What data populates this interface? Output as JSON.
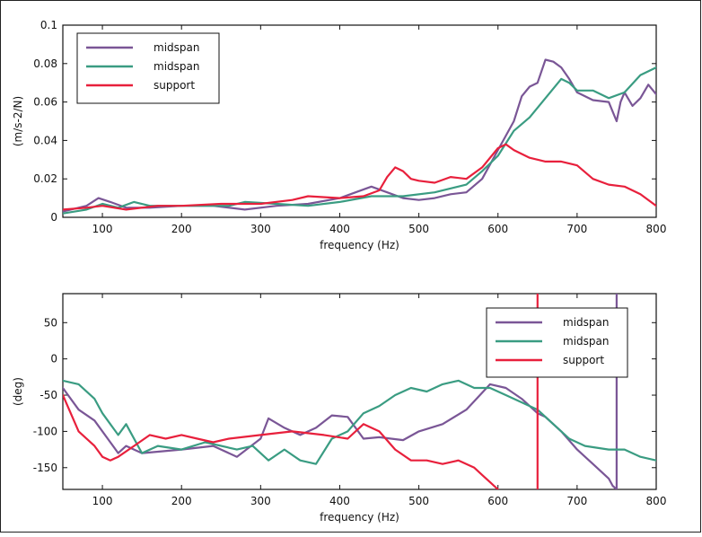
{
  "chart_data": [
    {
      "type": "line",
      "xlabel": "frequency (Hz)",
      "ylabel": "(m/s-2/N)",
      "xlim": [
        50,
        800
      ],
      "ylim": [
        0,
        0.1
      ],
      "xticks": [
        100,
        200,
        300,
        400,
        500,
        600,
        700,
        800
      ],
      "xtick_labels": [
        "100",
        "200",
        "300",
        "400",
        "500",
        "600",
        "700",
        "800"
      ],
      "yticks": [
        0,
        0.02,
        0.04,
        0.06,
        0.08,
        0.1
      ],
      "ytick_labels": [
        "0",
        "0.02",
        "0.04",
        "0.06",
        "0.08",
        "0.1"
      ],
      "legend_position": "top-left",
      "series": [
        {
          "name": "midspan",
          "color": "#7a5696",
          "points": [
            [
              50,
              0.003
            ],
            [
              80,
              0.006
            ],
            [
              95,
              0.01
            ],
            [
              110,
              0.008
            ],
            [
              130,
              0.005
            ],
            [
              160,
              0.005
            ],
            [
              200,
              0.006
            ],
            [
              240,
              0.006
            ],
            [
              280,
              0.004
            ],
            [
              320,
              0.006
            ],
            [
              360,
              0.007
            ],
            [
              400,
              0.01
            ],
            [
              420,
              0.013
            ],
            [
              440,
              0.016
            ],
            [
              460,
              0.013
            ],
            [
              480,
              0.01
            ],
            [
              500,
              0.009
            ],
            [
              520,
              0.01
            ],
            [
              540,
              0.012
            ],
            [
              560,
              0.013
            ],
            [
              580,
              0.02
            ],
            [
              600,
              0.035
            ],
            [
              620,
              0.05
            ],
            [
              630,
              0.063
            ],
            [
              640,
              0.068
            ],
            [
              650,
              0.07
            ],
            [
              660,
              0.082
            ],
            [
              670,
              0.081
            ],
            [
              680,
              0.078
            ],
            [
              690,
              0.072
            ],
            [
              700,
              0.065
            ],
            [
              720,
              0.061
            ],
            [
              740,
              0.06
            ],
            [
              750,
              0.05
            ],
            [
              755,
              0.06
            ],
            [
              760,
              0.065
            ],
            [
              770,
              0.058
            ],
            [
              780,
              0.062
            ],
            [
              790,
              0.069
            ],
            [
              800,
              0.064
            ]
          ]
        },
        {
          "name": "midspan",
          "color": "#3a9c82",
          "points": [
            [
              50,
              0.002
            ],
            [
              80,
              0.004
            ],
            [
              100,
              0.007
            ],
            [
              120,
              0.005
            ],
            [
              140,
              0.008
            ],
            [
              160,
              0.006
            ],
            [
              200,
              0.006
            ],
            [
              260,
              0.006
            ],
            [
              280,
              0.008
            ],
            [
              320,
              0.007
            ],
            [
              360,
              0.006
            ],
            [
              400,
              0.008
            ],
            [
              440,
              0.011
            ],
            [
              480,
              0.011
            ],
            [
              520,
              0.013
            ],
            [
              560,
              0.017
            ],
            [
              580,
              0.024
            ],
            [
              600,
              0.032
            ],
            [
              620,
              0.045
            ],
            [
              640,
              0.052
            ],
            [
              660,
              0.062
            ],
            [
              680,
              0.072
            ],
            [
              690,
              0.07
            ],
            [
              700,
              0.066
            ],
            [
              720,
              0.066
            ],
            [
              740,
              0.062
            ],
            [
              760,
              0.065
            ],
            [
              780,
              0.074
            ],
            [
              800,
              0.078
            ]
          ]
        },
        {
          "name": "support",
          "color": "#e8203c",
          "points": [
            [
              50,
              0.004
            ],
            [
              80,
              0.005
            ],
            [
              100,
              0.006
            ],
            [
              130,
              0.004
            ],
            [
              170,
              0.006
            ],
            [
              200,
              0.006
            ],
            [
              250,
              0.007
            ],
            [
              300,
              0.007
            ],
            [
              340,
              0.009
            ],
            [
              360,
              0.011
            ],
            [
              400,
              0.01
            ],
            [
              430,
              0.011
            ],
            [
              450,
              0.014
            ],
            [
              460,
              0.021
            ],
            [
              470,
              0.026
            ],
            [
              480,
              0.024
            ],
            [
              490,
              0.02
            ],
            [
              500,
              0.019
            ],
            [
              520,
              0.018
            ],
            [
              540,
              0.021
            ],
            [
              560,
              0.02
            ],
            [
              580,
              0.026
            ],
            [
              600,
              0.036
            ],
            [
              610,
              0.038
            ],
            [
              620,
              0.035
            ],
            [
              640,
              0.031
            ],
            [
              660,
              0.029
            ],
            [
              680,
              0.029
            ],
            [
              700,
              0.027
            ],
            [
              720,
              0.02
            ],
            [
              740,
              0.017
            ],
            [
              760,
              0.016
            ],
            [
              780,
              0.012
            ],
            [
              800,
              0.006
            ]
          ]
        }
      ]
    },
    {
      "type": "line",
      "xlabel": "frequency (Hz)",
      "ylabel": "(deg)",
      "xlim": [
        50,
        800
      ],
      "ylim": [
        -180,
        90
      ],
      "xticks": [
        100,
        200,
        300,
        400,
        500,
        600,
        700,
        800
      ],
      "xtick_labels": [
        "100",
        "200",
        "300",
        "400",
        "500",
        "600",
        "700",
        "800"
      ],
      "yticks": [
        -150,
        -100,
        -50,
        0,
        50
      ],
      "ytick_labels": [
        "-150",
        "-100",
        "-50",
        "0",
        "50"
      ],
      "legend_position": "top-right",
      "series": [
        {
          "name": "midspan",
          "color": "#7a5696",
          "segments": [
            [
              [
                50,
                -40
              ],
              [
                70,
                -70
              ],
              [
                90,
                -85
              ],
              [
                110,
                -115
              ],
              [
                120,
                -130
              ],
              [
                130,
                -120
              ],
              [
                150,
                -130
              ],
              [
                200,
                -125
              ],
              [
                240,
                -120
              ],
              [
                270,
                -135
              ],
              [
                300,
                -110
              ],
              [
                310,
                -82
              ],
              [
                330,
                -95
              ],
              [
                350,
                -105
              ],
              [
                370,
                -95
              ],
              [
                390,
                -78
              ],
              [
                410,
                -80
              ],
              [
                430,
                -110
              ],
              [
                450,
                -108
              ],
              [
                480,
                -112
              ],
              [
                500,
                -100
              ],
              [
                530,
                -90
              ],
              [
                560,
                -70
              ],
              [
                590,
                -35
              ],
              [
                610,
                -40
              ],
              [
                630,
                -55
              ],
              [
                650,
                -75
              ],
              [
                660,
                -80
              ],
              [
                680,
                -100
              ],
              [
                700,
                -125
              ],
              [
                720,
                -145
              ],
              [
                740,
                -165
              ],
              [
                745,
                -175
              ],
              [
                750,
                -180
              ]
            ],
            [
              [
                750,
                -180
              ],
              [
                750,
                90
              ]
            ]
          ]
        },
        {
          "name": "midspan",
          "color": "#3a9c82",
          "segments": [
            [
              [
                50,
                -30
              ],
              [
                70,
                -35
              ],
              [
                90,
                -55
              ],
              [
                100,
                -75
              ],
              [
                110,
                -90
              ],
              [
                120,
                -105
              ],
              [
                130,
                -90
              ],
              [
                150,
                -130
              ],
              [
                170,
                -120
              ],
              [
                200,
                -125
              ],
              [
                230,
                -115
              ],
              [
                270,
                -125
              ],
              [
                290,
                -120
              ],
              [
                310,
                -140
              ],
              [
                330,
                -125
              ],
              [
                350,
                -140
              ],
              [
                370,
                -145
              ],
              [
                390,
                -110
              ],
              [
                410,
                -100
              ],
              [
                430,
                -75
              ],
              [
                450,
                -65
              ],
              [
                470,
                -50
              ],
              [
                490,
                -40
              ],
              [
                510,
                -45
              ],
              [
                530,
                -35
              ],
              [
                550,
                -30
              ],
              [
                570,
                -40
              ],
              [
                590,
                -40
              ],
              [
                610,
                -50
              ],
              [
                630,
                -60
              ],
              [
                650,
                -70
              ],
              [
                670,
                -90
              ],
              [
                690,
                -110
              ],
              [
                710,
                -120
              ],
              [
                740,
                -125
              ],
              [
                760,
                -125
              ],
              [
                780,
                -135
              ],
              [
                800,
                -140
              ]
            ]
          ]
        },
        {
          "name": "support",
          "color": "#e8203c",
          "segments": [
            [
              [
                50,
                -50
              ],
              [
                70,
                -100
              ],
              [
                90,
                -120
              ],
              [
                100,
                -135
              ],
              [
                110,
                -140
              ],
              [
                120,
                -135
              ],
              [
                140,
                -120
              ],
              [
                160,
                -105
              ],
              [
                180,
                -110
              ],
              [
                200,
                -105
              ],
              [
                220,
                -110
              ],
              [
                240,
                -115
              ],
              [
                260,
                -110
              ],
              [
                300,
                -105
              ],
              [
                340,
                -100
              ],
              [
                380,
                -105
              ],
              [
                410,
                -110
              ],
              [
                430,
                -90
              ],
              [
                450,
                -100
              ],
              [
                470,
                -125
              ],
              [
                490,
                -140
              ],
              [
                510,
                -140
              ],
              [
                530,
                -145
              ],
              [
                550,
                -140
              ],
              [
                560,
                -145
              ],
              [
                570,
                -150
              ],
              [
                580,
                -160
              ],
              [
                590,
                -170
              ],
              [
                600,
                -180
              ]
            ],
            [
              [
                650,
                90
              ],
              [
                650,
                -180
              ]
            ]
          ]
        }
      ]
    }
  ]
}
